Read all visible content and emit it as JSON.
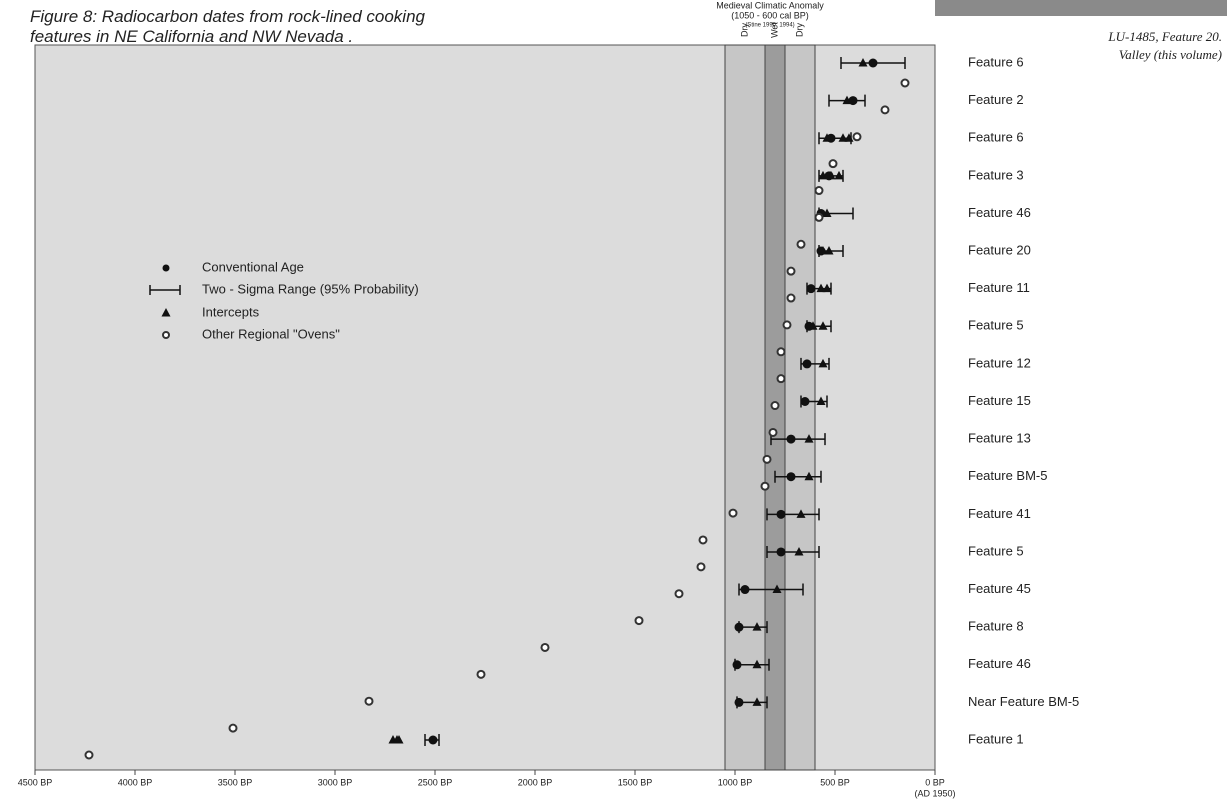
{
  "chart_data": {
    "type": "dot-range",
    "title": "Figure 8: Radiocarbon dates from rock-lined cooking features in NE California and NW Nevada .",
    "side_note": [
      "LU-1485, Feature 20.",
      "Valley (this volume)"
    ],
    "anomaly": {
      "title": "Medieval Climatic Anomaly",
      "subtitle": "(1050 - 600 cal BP)",
      "source": "(Stine 1990, 1994)",
      "range": [
        1050,
        600
      ],
      "wet": [
        850,
        750
      ],
      "labels": [
        "Dry",
        "Wet",
        "Dry"
      ],
      "color": "#c6c6c6",
      "wet_color": "#9c9c9c"
    },
    "xlim": [
      4500,
      0
    ],
    "xticks": [
      {
        "value": 4500,
        "label": "4500 BP"
      },
      {
        "value": 4000,
        "label": "4000 BP"
      },
      {
        "value": 3500,
        "label": "3500 BP"
      },
      {
        "value": 3000,
        "label": "3000 BP"
      },
      {
        "value": 2500,
        "label": "2500 BP"
      },
      {
        "value": 2000,
        "label": "2000 BP"
      },
      {
        "value": 1500,
        "label": "1500 BP"
      },
      {
        "value": 1000,
        "label": "1000 BP"
      },
      {
        "value": 500,
        "label": "500 BP"
      },
      {
        "value": 0,
        "label": "0 BP"
      }
    ],
    "x_note": "(AD 1950)",
    "legend": [
      "Conventional Age",
      "Two - Sigma Range (95% Probability)",
      "Intercepts",
      "Other Regional \"Ovens\""
    ],
    "rows": [
      {
        "label": "Feature 6",
        "age": 310,
        "range": [
          470,
          150
        ],
        "intercepts": [
          360
        ]
      },
      {
        "label": "Feature 2",
        "age": 410,
        "range": [
          530,
          350
        ],
        "intercepts": [
          440
        ]
      },
      {
        "label": "Feature 6",
        "age": 520,
        "range": [
          580,
          420
        ],
        "intercepts": [
          540,
          460,
          430
        ]
      },
      {
        "label": "Feature 3",
        "age": 530,
        "range": [
          580,
          460
        ],
        "intercepts": [
          560,
          520,
          480
        ]
      },
      {
        "label": "Feature 46",
        "age": 570,
        "range": [
          580,
          410
        ],
        "intercepts": [
          540
        ]
      },
      {
        "label": "Feature 20",
        "age": 570,
        "range": [
          580,
          460
        ],
        "intercepts": [
          560,
          530
        ]
      },
      {
        "label": "Feature 11",
        "age": 620,
        "range": [
          640,
          520
        ],
        "intercepts": [
          570,
          540
        ]
      },
      {
        "label": "Feature 5",
        "age": 630,
        "range": [
          640,
          520
        ],
        "intercepts": [
          610,
          560
        ]
      },
      {
        "label": "Feature 12",
        "age": 640,
        "range": [
          670,
          530
        ],
        "intercepts": [
          560
        ]
      },
      {
        "label": "Feature 15",
        "age": 650,
        "range": [
          670,
          540
        ],
        "intercepts": [
          570
        ]
      },
      {
        "label": "Feature 13",
        "age": 720,
        "range": [
          820,
          550
        ],
        "intercepts": [
          630
        ]
      },
      {
        "label": "Feature BM-5",
        "age": 720,
        "range": [
          800,
          570
        ],
        "intercepts": [
          630
        ]
      },
      {
        "label": "Feature 41",
        "age": 770,
        "range": [
          840,
          580
        ],
        "intercepts": [
          670
        ]
      },
      {
        "label": "Feature 5",
        "age": 770,
        "range": [
          840,
          580
        ],
        "intercepts": [
          680
        ]
      },
      {
        "label": "Feature 45",
        "age": 950,
        "range": [
          980,
          660
        ],
        "intercepts": [
          790
        ]
      },
      {
        "label": "Feature 8",
        "age": 980,
        "range": [
          980,
          840
        ],
        "intercepts": [
          890
        ]
      },
      {
        "label": "Feature 46",
        "age": 990,
        "range": [
          1000,
          830
        ],
        "intercepts": [
          890
        ]
      },
      {
        "label": "Near Feature BM-5",
        "age": 980,
        "range": [
          990,
          840
        ],
        "intercepts": [
          890
        ]
      },
      {
        "label": "Feature 1",
        "age": 2510,
        "range": [
          2550,
          2480
        ],
        "intercepts": [
          2710,
          2680,
          2690
        ]
      }
    ],
    "ovens": [
      150,
      250,
      390,
      510,
      580,
      580,
      670,
      720,
      720,
      740,
      770,
      770,
      800,
      810,
      840,
      850,
      1010,
      1160,
      1170,
      1280,
      1480,
      1950,
      2270,
      2830,
      3510,
      4230
    ]
  }
}
